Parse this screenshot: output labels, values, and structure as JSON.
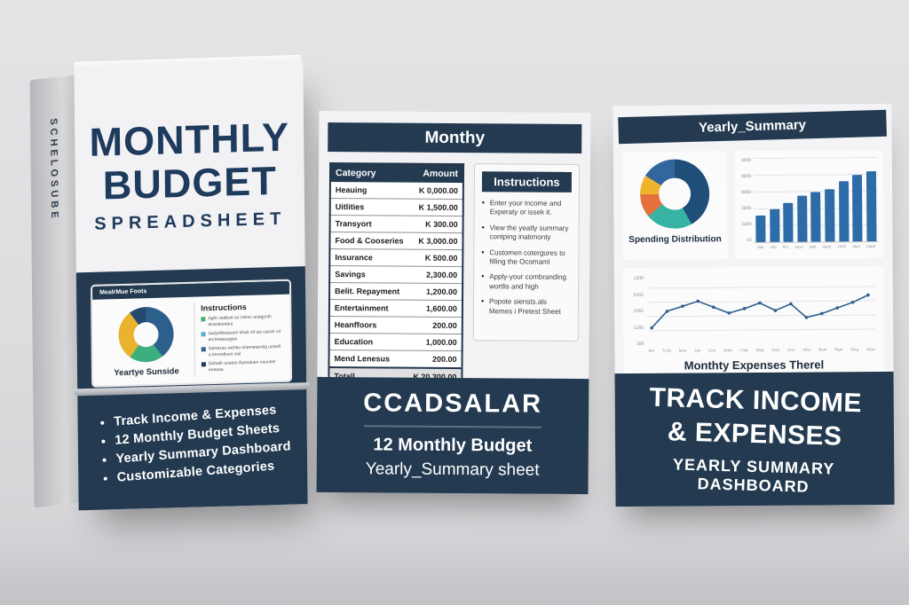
{
  "colors": {
    "navy": "#233a50",
    "panel_background": "#f2f2f4",
    "bar_blue": "#2e6ca8",
    "scene_background": "#dddddf"
  },
  "box": {
    "spine_text": "SCHELOSUBE",
    "title_line1": "MONTHLY",
    "title_line2": "BUDGET",
    "title_line3": "SPREADSHEET",
    "laptop": {
      "header": "MealrMue Foots",
      "chart_caption": "Yeartye Sunside",
      "instructions_title": "Instructions",
      "instructions": [
        {
          "marker_color": "#4caf72",
          "text": "Aght nedbotl ou nlstoc anegynth ehanetonbul"
        },
        {
          "marker_color": "#5bacd6",
          "text": "Iaulyshbaacam ehait oll ats caustr ixl erclosseaague"
        },
        {
          "marker_color": "#33618f",
          "text": "Getrezaz wehbu shemesentig umedl a trenodlaso vail"
        },
        {
          "marker_color": "#1d3a5c",
          "text": "Dahath uxatce diysoduen nauceer enaaaa"
        }
      ]
    },
    "features": [
      "Track Income & Expenses",
      "12 Monthly Budget Sheets",
      "Yearly Summary Dashboard",
      "Customizable Categories"
    ]
  },
  "monthly_panel": {
    "header": "Monthy",
    "table": {
      "columns": [
        "Category",
        "Amount"
      ],
      "rows": [
        [
          "Heauing",
          "K  0,000.00"
        ],
        [
          "Uitlities",
          "K 1,500.00"
        ],
        [
          "Transyort",
          "K  300.00"
        ],
        [
          "Food & Cooseries",
          "K 3,000.00"
        ],
        [
          "Insurance",
          "K  500.00"
        ],
        [
          "Savings",
          "2,300.00"
        ],
        [
          "Belit. Repayment",
          "1,200.00"
        ],
        [
          "Entertainment",
          "1,600.00"
        ],
        [
          "Heanffoors",
          "200.00"
        ],
        [
          "Education",
          "1,000.00"
        ],
        [
          "Mend Lenesus",
          "200.00"
        ]
      ],
      "total_row": [
        "Totall",
        "K 20,300.00"
      ]
    },
    "instructions": {
      "title": "Instructions",
      "items": [
        "Enter your income and Experaty or issek it.",
        "View the yeatly summary contping inatimonty",
        "Customen cotergures to filling the Ocomaml",
        "Apply-your combranding wortlis and high",
        "Popote siensts.als Memes i Pretest Sheet"
      ]
    },
    "footer": {
      "title": "CCADSALAR",
      "line1": "12 Monthly Budget",
      "line2": "Yearly_Summary sheet"
    }
  },
  "yearly_panel": {
    "header": "Yearly_Summary",
    "donut_caption": "Spending Distribution",
    "footer_line1": "TRACK INCOME",
    "footer_line2": "& EXPENSES",
    "footer_line3": "YEARLY SUMMARY DASHBOARD"
  },
  "chart_data": [
    {
      "id": "box-laptop-donut",
      "type": "pie",
      "donut": true,
      "title": "Yeartye Sunside",
      "legend_position": "none",
      "slices": [
        {
          "label": "segment-1",
          "value": 40,
          "color": "#2d5f8d"
        },
        {
          "label": "segment-2",
          "value": 20,
          "color": "#3caf7c"
        },
        {
          "label": "segment-3",
          "value": 30,
          "color": "#e9b32f"
        },
        {
          "label": "segment-4",
          "value": 10,
          "color": "#24496e"
        }
      ]
    },
    {
      "id": "yearly-spending-donut",
      "type": "pie",
      "donut": true,
      "title": "Spending Distribution",
      "legend_position": "none",
      "slices": [
        {
          "label": "segment-1",
          "value": 42,
          "color": "#1f4e79"
        },
        {
          "label": "segment-2",
          "value": 22,
          "color": "#38b2a3"
        },
        {
          "label": "segment-3",
          "value": 11,
          "color": "#e4703c"
        },
        {
          "label": "segment-4",
          "value": 9,
          "color": "#f0b32e"
        },
        {
          "label": "segment-5",
          "value": 16,
          "color": "#31679c"
        }
      ]
    },
    {
      "id": "yearly-bar-chart",
      "type": "bar",
      "title": "",
      "categories": [
        "das",
        "nda",
        "firu",
        "aszo",
        "tatd",
        "dasd",
        "2440",
        "tdas",
        "ndad"
      ],
      "values": [
        1450,
        1800,
        2150,
        2500,
        2700,
        2850,
        3300,
        3650,
        3850
      ],
      "ylim": [
        0,
        4600
      ],
      "ytick_labels": [
        "3000",
        "0000",
        "8000",
        "2400",
        "2400",
        "10"
      ],
      "bar_color": "#2e6ca8",
      "grid": true,
      "legend_position": "none"
    },
    {
      "id": "yearly-line-chart",
      "type": "line",
      "title": "Monthty Expenses Therel",
      "x": [
        "Ath",
        "Tx16",
        "Moo",
        "Jyo",
        "L6sr",
        "Adsc",
        "L4ar",
        "Mog",
        "ssse",
        "srve",
        "n6sr",
        "Num",
        "Rgni",
        "Ssrg",
        "Asse"
      ],
      "values": [
        18,
        48,
        57,
        66,
        55,
        44,
        52,
        62,
        48,
        60,
        35,
        42,
        52,
        62,
        75
      ],
      "ylim": [
        0,
        100
      ],
      "ytick_labels": [
        "1200",
        "5260",
        "2350",
        "1200",
        "300"
      ],
      "line_color": "#2f5f8f",
      "grid": true,
      "legend_position": "none"
    }
  ]
}
